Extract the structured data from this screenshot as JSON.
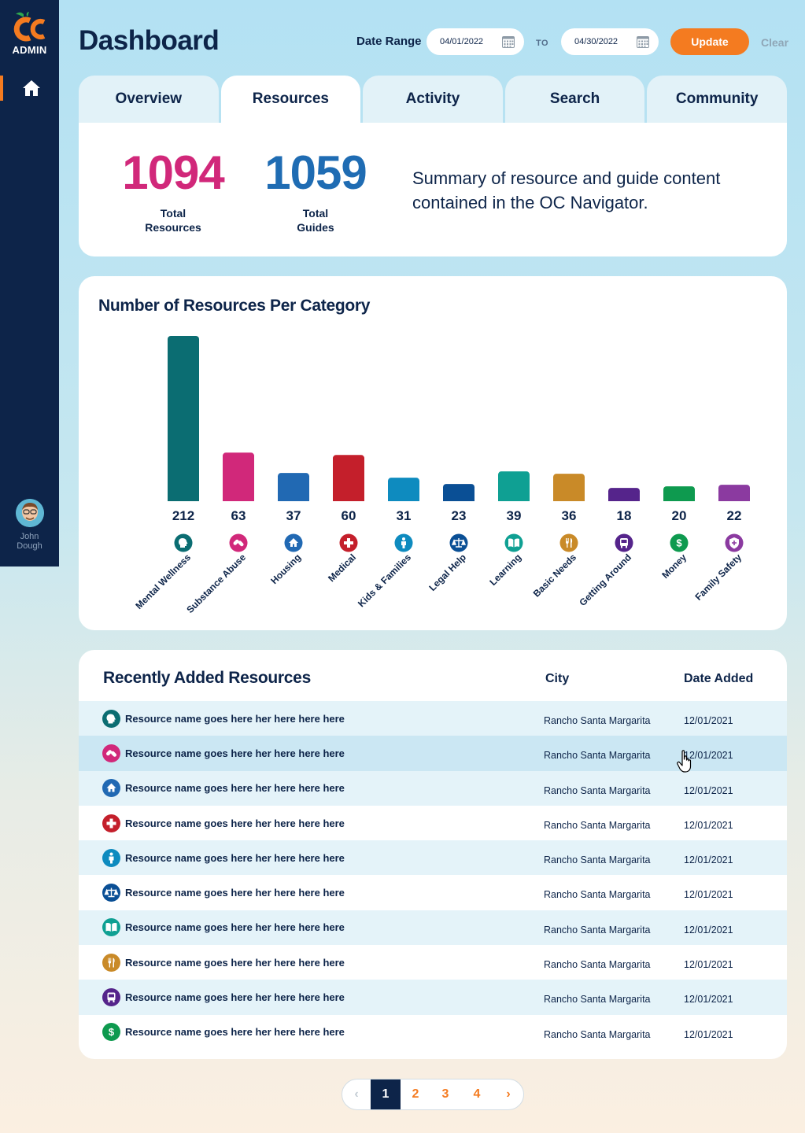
{
  "sidebar": {
    "logo_mark": "OC",
    "logo_label": "ADMIN",
    "user_first": "John",
    "user_last": "Dough"
  },
  "header": {
    "title": "Dashboard",
    "date_range_label": "Date Range",
    "start_date": "04/01/2022",
    "to_label": "TO",
    "end_date": "04/30/2022",
    "update_label": "Update",
    "clear_label": "Clear"
  },
  "tabs": [
    {
      "label": "Overview"
    },
    {
      "label": "Resources"
    },
    {
      "label": "Activity"
    },
    {
      "label": "Search"
    },
    {
      "label": "Community"
    }
  ],
  "summary": {
    "total_resources": "1094",
    "total_resources_label_1": "Total",
    "total_resources_label_2": "Resources",
    "total_guides": "1059",
    "total_guides_label_1": "Total",
    "total_guides_label_2": "Guides",
    "description": "Summary of resource and guide content contained in the OC Navigator.",
    "resources_color": "#d1287a",
    "guides_color": "#1f6cb3"
  },
  "chart_data": {
    "type": "bar",
    "title": "Number of Resources Per Category",
    "categories": [
      "Mental Wellness",
      "Substance Abuse",
      "Housing",
      "Medical",
      "Kids & Families",
      "Legal Help",
      "Learning",
      "Basic Needs",
      "Getting Around",
      "Money",
      "Family Safety"
    ],
    "values": [
      212,
      63,
      37,
      60,
      31,
      23,
      39,
      36,
      18,
      20,
      22
    ],
    "colors": [
      "#0b6d72",
      "#d1287a",
      "#2169b3",
      "#c41f2b",
      "#0e8bbf",
      "#0a4f95",
      "#0fa093",
      "#c98a28",
      "#55248b",
      "#0e9a4f",
      "#8b3aa0"
    ],
    "icons": [
      "head-icon",
      "pills-icon",
      "house-icon",
      "medical-cross-icon",
      "child-icon",
      "scales-icon",
      "book-icon",
      "utensils-icon",
      "bus-icon",
      "dollar-icon",
      "shield-icon"
    ],
    "xlabel": "",
    "ylabel": "",
    "ylim": [
      0,
      212
    ]
  },
  "recent": {
    "title": "Recently Added Resources",
    "col_city": "City",
    "col_date": "Date Added",
    "rows": [
      {
        "name": "Resource name goes here her here here here",
        "city": "Rancho Santa Margarita",
        "date": "12/01/2021",
        "category": 0
      },
      {
        "name": "Resource name goes here her here here here",
        "city": "Rancho Santa Margarita",
        "date": "12/01/2021",
        "category": 1
      },
      {
        "name": "Resource name goes here her here here here",
        "city": "Rancho Santa Margarita",
        "date": "12/01/2021",
        "category": 2
      },
      {
        "name": "Resource name goes here her here here here",
        "city": "Rancho Santa Margarita",
        "date": "12/01/2021",
        "category": 3
      },
      {
        "name": "Resource name goes here her here here here",
        "city": "Rancho Santa Margarita",
        "date": "12/01/2021",
        "category": 4
      },
      {
        "name": "Resource name goes here her here here here",
        "city": "Rancho Santa Margarita",
        "date": "12/01/2021",
        "category": 5
      },
      {
        "name": "Resource name goes here her here here here",
        "city": "Rancho Santa Margarita",
        "date": "12/01/2021",
        "category": 6
      },
      {
        "name": "Resource name goes here her here here here",
        "city": "Rancho Santa Margarita",
        "date": "12/01/2021",
        "category": 7
      },
      {
        "name": "Resource name goes here her here here here",
        "city": "Rancho Santa Margarita",
        "date": "12/01/2021",
        "category": 8
      },
      {
        "name": "Resource name goes here her here here here",
        "city": "Rancho Santa Margarita",
        "date": "12/01/2021",
        "category": 9
      }
    ]
  },
  "pagination": {
    "prev": "‹",
    "pages": [
      "1",
      "2",
      "3",
      "4"
    ],
    "current": "1",
    "next": "›"
  },
  "colors": {
    "accent": "#f47b20",
    "navy": "#0d2449"
  }
}
